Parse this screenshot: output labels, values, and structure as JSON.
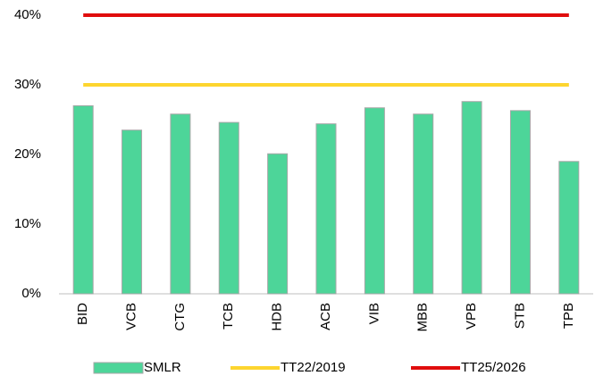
{
  "chart_data": {
    "type": "bar",
    "categories": [
      "BID",
      "VCB",
      "CTG",
      "TCB",
      "HDB",
      "ACB",
      "VIB",
      "MBB",
      "VPB",
      "STB",
      "TPB"
    ],
    "series": [
      {
        "name": "SMLR",
        "type": "bar",
        "color": "#4dd599",
        "values": [
          27.0,
          23.5,
          25.8,
          24.6,
          20.1,
          24.4,
          26.7,
          25.8,
          27.6,
          26.3,
          19.0
        ]
      },
      {
        "name": "TT22/2019",
        "type": "line",
        "color": "#fdd52f",
        "values": [
          30,
          30,
          30,
          30,
          30,
          30,
          30,
          30,
          30,
          30,
          30
        ]
      },
      {
        "name": "TT25/2026",
        "type": "line",
        "color": "#e00d0d",
        "values": [
          40,
          40,
          40,
          40,
          40,
          40,
          40,
          40,
          40,
          40,
          40
        ]
      }
    ],
    "ylim": [
      0,
      40
    ],
    "yticks": [
      {
        "value": 0,
        "label": "0%"
      },
      {
        "value": 10,
        "label": "10%"
      },
      {
        "value": 20,
        "label": "20%"
      },
      {
        "value": 30,
        "label": "30%"
      },
      {
        "value": 40,
        "label": "40%"
      }
    ],
    "legend": "bottom"
  }
}
